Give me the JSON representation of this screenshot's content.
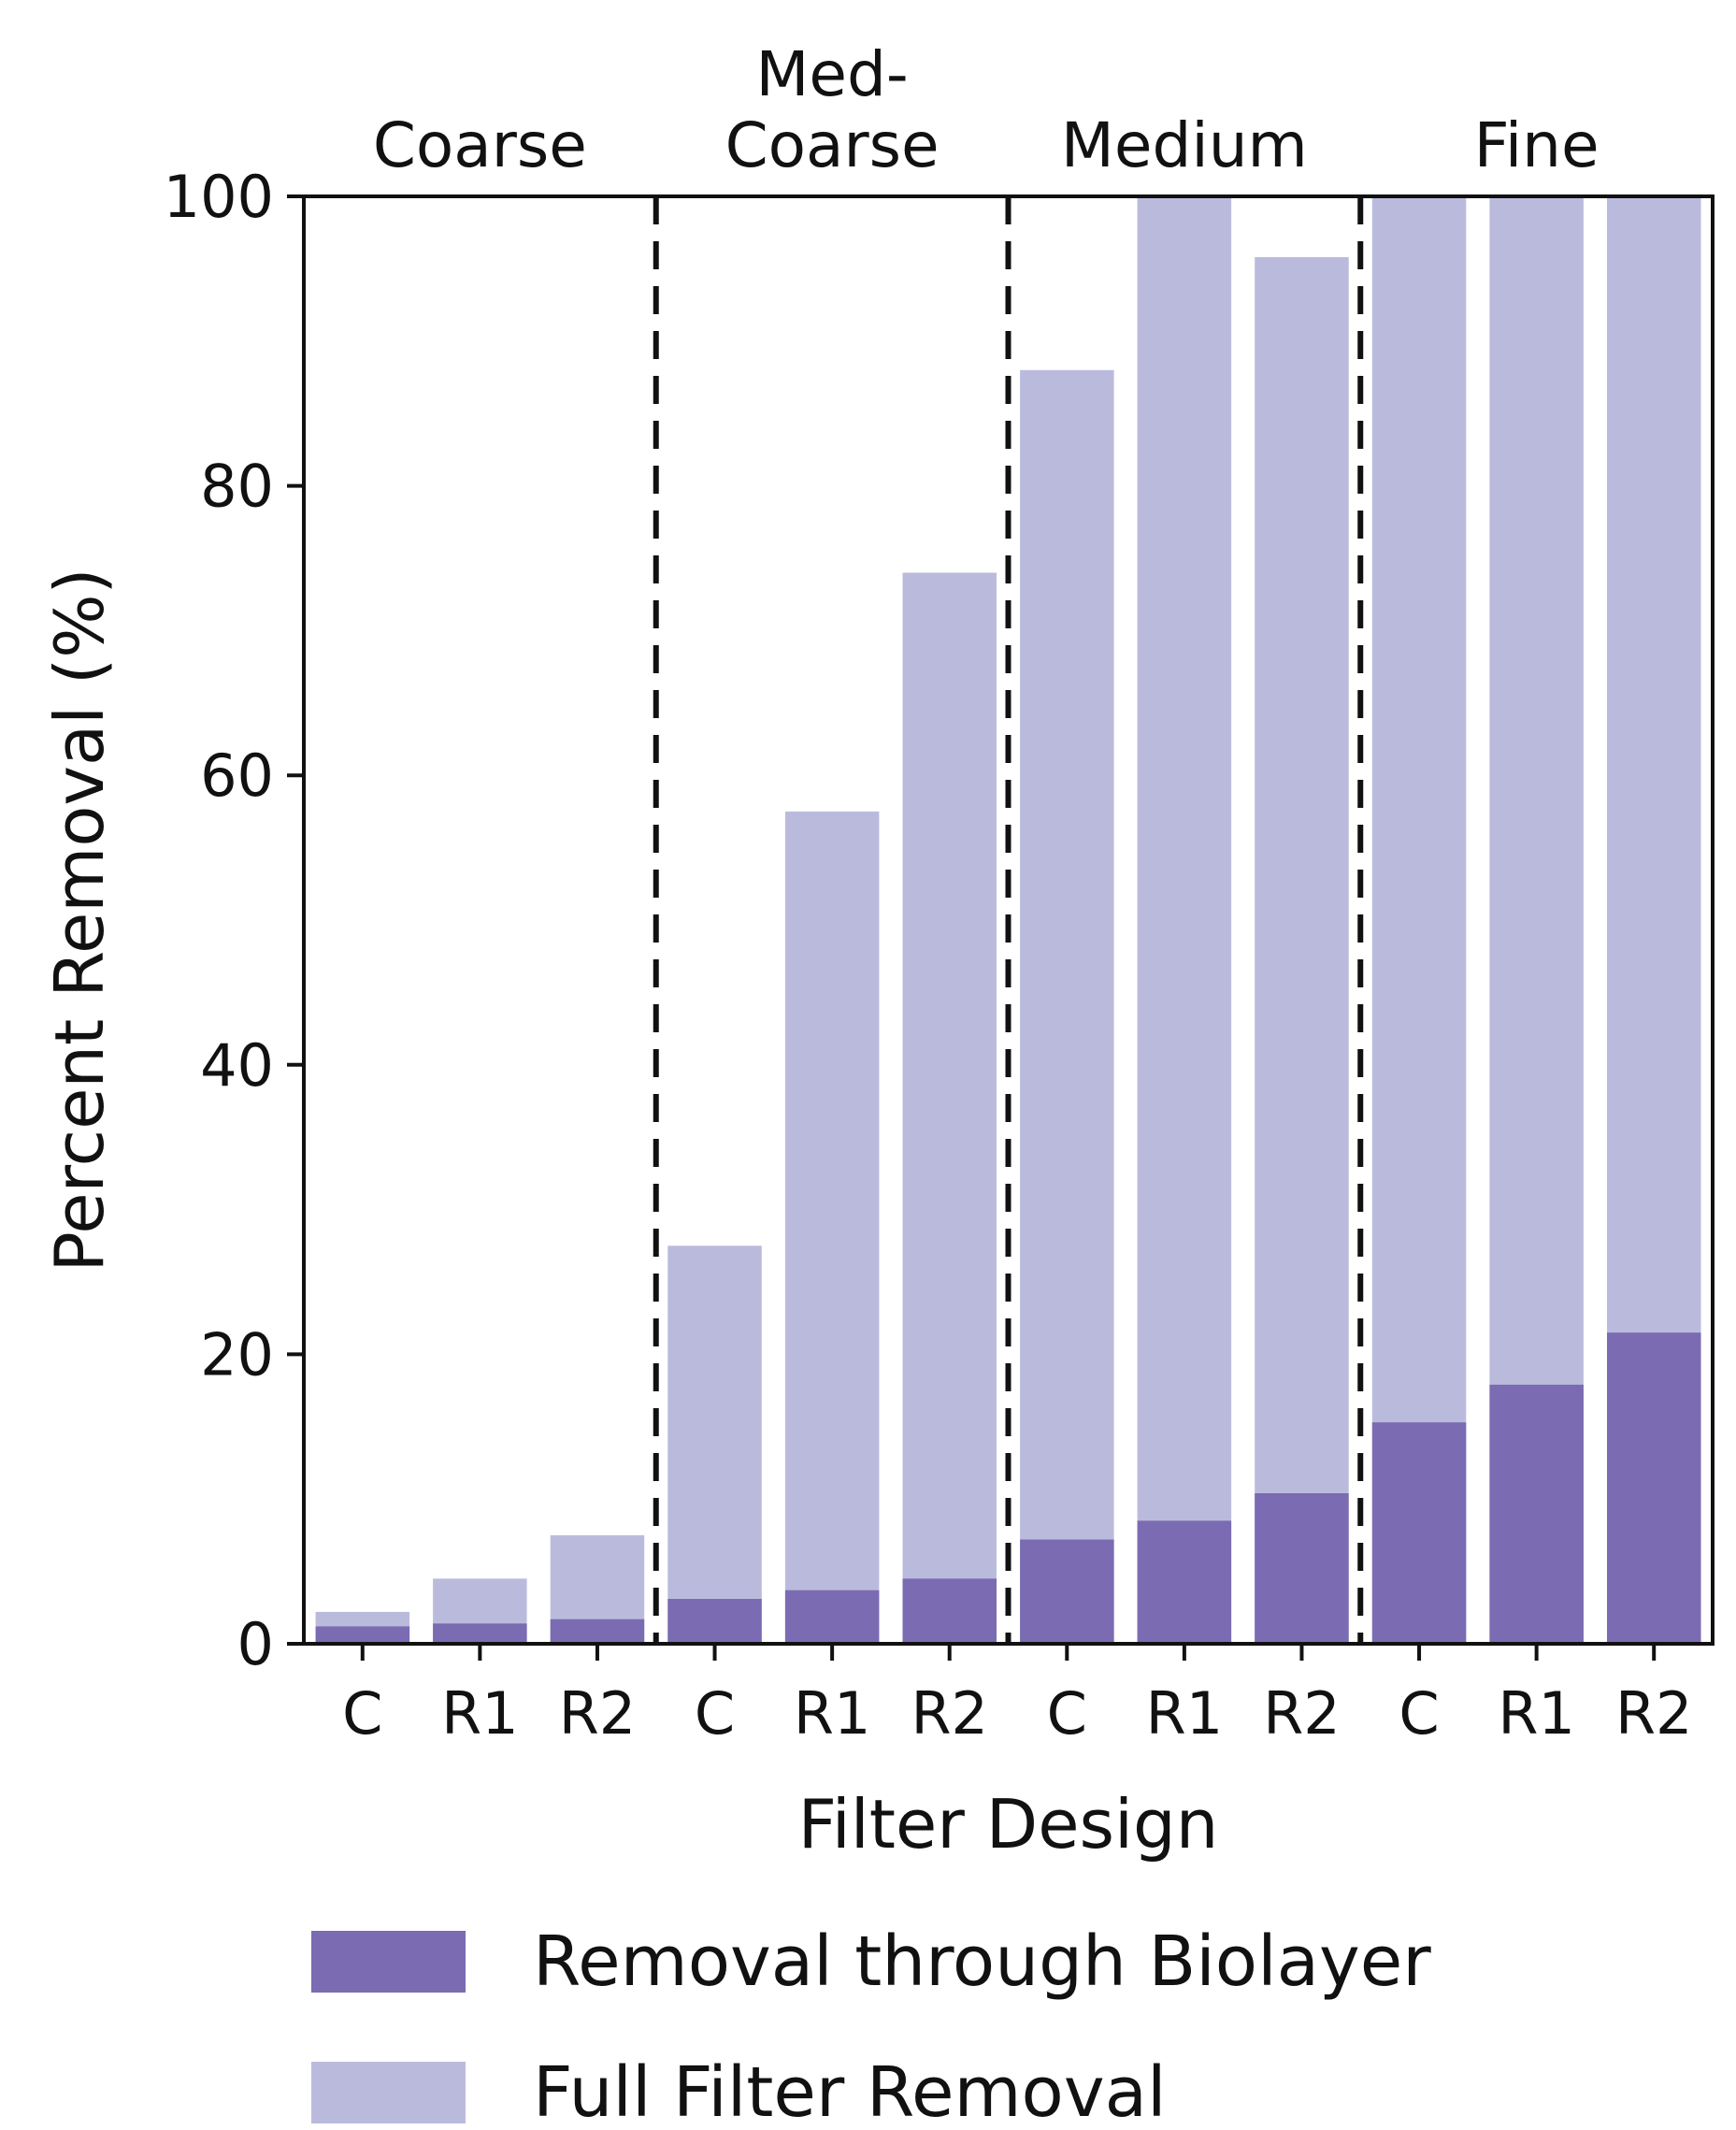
{
  "chart_data": {
    "type": "bar",
    "stacked_overlay": true,
    "xlabel": "Filter Design",
    "ylabel": "Percent Removal (%)",
    "ylim": [
      0,
      100
    ],
    "yticks": [
      0,
      20,
      40,
      60,
      80,
      100
    ],
    "grid": false,
    "legend_position": "bottom",
    "categories": [
      "C",
      "R1",
      "R2",
      "C",
      "R1",
      "R2",
      "C",
      "R1",
      "R2",
      "C",
      "R1",
      "R2"
    ],
    "groups": [
      {
        "label": "Coarse",
        "start": 0,
        "count": 3
      },
      {
        "label": "Med-\nCoarse",
        "start": 3,
        "count": 3
      },
      {
        "label": "Medium",
        "start": 6,
        "count": 3
      },
      {
        "label": "Fine",
        "start": 9,
        "count": 3
      }
    ],
    "group_separators": true,
    "series": [
      {
        "name": "Full Filter Removal",
        "color": "#babbdc",
        "values": [
          2.2,
          4.5,
          7.5,
          27.5,
          57.5,
          74.0,
          88.0,
          100,
          95.8,
          100,
          100,
          100
        ]
      },
      {
        "name": "Removal through Biolayer",
        "color": "#7b6bb2",
        "values": [
          1.2,
          1.4,
          1.7,
          3.1,
          3.7,
          4.5,
          7.2,
          8.5,
          10.4,
          15.3,
          17.9,
          21.5
        ]
      }
    ],
    "legend": [
      {
        "label": "Removal through Biolayer",
        "color": "#7b6bb2"
      },
      {
        "label": "Full Filter Removal",
        "color": "#babbdc"
      }
    ]
  }
}
